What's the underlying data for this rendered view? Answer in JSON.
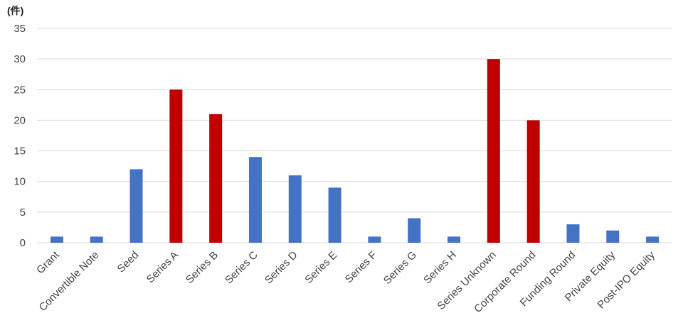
{
  "chart_data": {
    "type": "bar",
    "unit_label": "(件)",
    "categories": [
      "Grant",
      "Convertible Note",
      "Seed",
      "Series A",
      "Series B",
      "Series C",
      "Series D",
      "Series E",
      "Series F",
      "Series G",
      "Series H",
      "Series Unknown",
      "Corporate Round",
      "Funding Round",
      "Private Equity",
      "Post-IPO Equity"
    ],
    "values": [
      1,
      1,
      12,
      25,
      21,
      14,
      11,
      9,
      1,
      4,
      1,
      30,
      20,
      3,
      2,
      1
    ],
    "highlighted": [
      false,
      false,
      false,
      true,
      true,
      false,
      false,
      false,
      false,
      false,
      false,
      true,
      true,
      false,
      false,
      false
    ],
    "ylim": [
      0,
      35
    ],
    "yticks": [
      0,
      5,
      10,
      15,
      20,
      25,
      30,
      35
    ],
    "grid": true,
    "colors": {
      "default": "#4472C4",
      "highlight": "#C00000",
      "grid": "#D9D9D9"
    }
  }
}
